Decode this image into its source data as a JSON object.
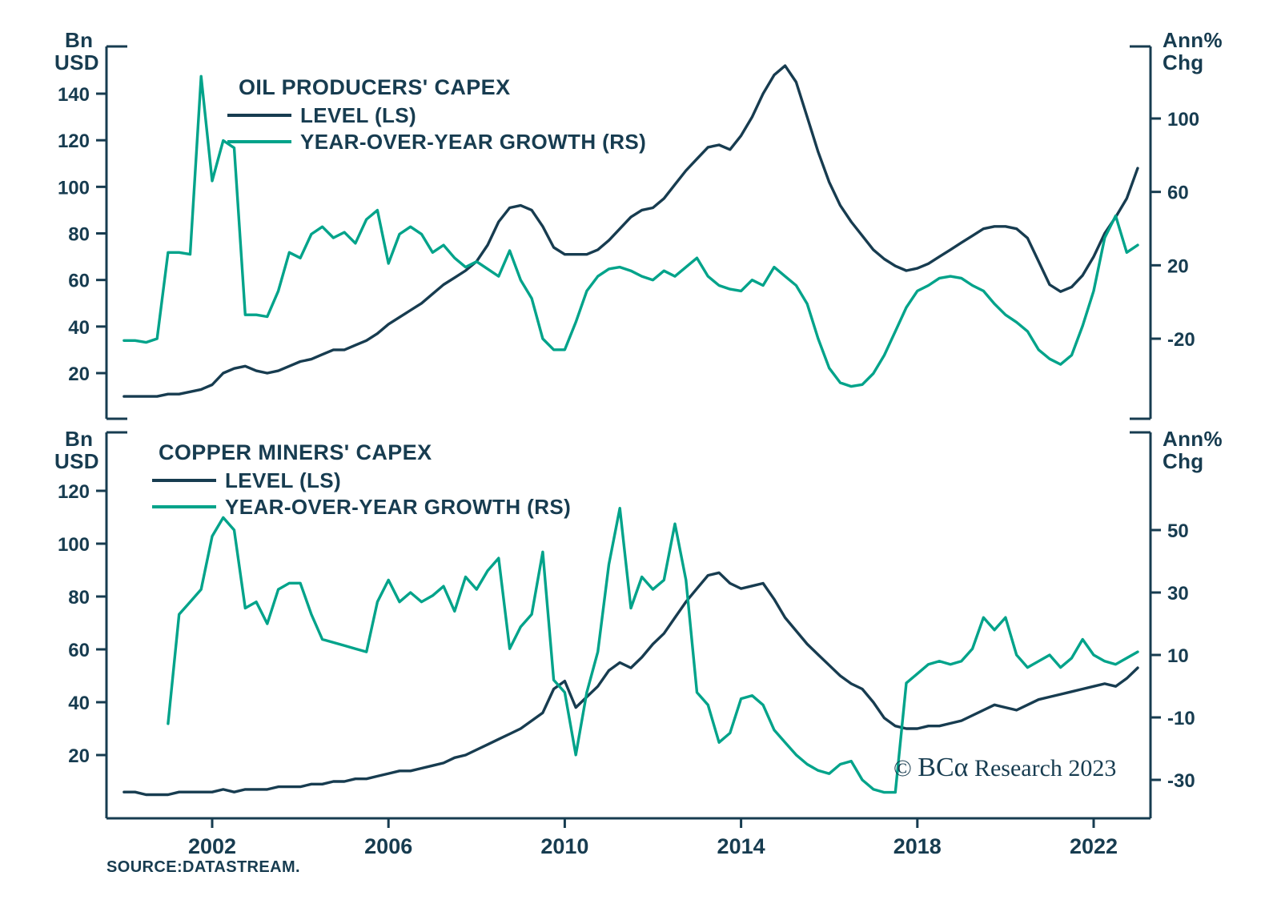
{
  "colors": {
    "navy": "#173c50",
    "teal": "#00a38a",
    "background": "#ffffff"
  },
  "top_chart": {
    "title": "OIL PRODUCERS' CAPEX",
    "legend_level": "LEVEL (LS)",
    "legend_growth": "YEAR-OVER-YEAR GROWTH (RS)",
    "left_unit_line1": "Bn",
    "left_unit_line2": "USD",
    "right_unit_line1": "Ann%",
    "right_unit_line2": "Chg"
  },
  "bottom_chart": {
    "title": "COPPER MINERS' CAPEX",
    "legend_level": "LEVEL (LS)",
    "legend_growth": "YEAR-OVER-YEAR GROWTH (RS)",
    "left_unit_line1": "Bn",
    "left_unit_line2": "USD",
    "right_unit_line1": "Ann%",
    "right_unit_line2": "Chg"
  },
  "footer": {
    "copyright_symbol": "©",
    "brand": "BCα",
    "copyright_suffix": "Research 2023",
    "source": "SOURCE:DATASTREAM."
  },
  "chart_data": [
    {
      "type": "line",
      "title": "OIL PRODUCERS' CAPEX",
      "x_start": 2000.0,
      "x_step": 0.25,
      "x_tick_labels": [
        2002,
        2006,
        2010,
        2014,
        2018,
        2022
      ],
      "left_axis": {
        "label": "Bn USD",
        "ticks": [
          20,
          40,
          60,
          80,
          100,
          120,
          140
        ],
        "approx_range": [
          0,
          160
        ]
      },
      "right_axis": {
        "label": "Ann% Chg",
        "ticks": [
          -20,
          20,
          60,
          100
        ],
        "approx_range": [
          -64,
          139
        ]
      },
      "series": [
        {
          "name": "LEVEL (LS)",
          "axis": "left",
          "color_key": "navy",
          "unit": "Bn USD",
          "values": [
            10,
            10,
            10,
            10,
            11,
            11,
            12,
            13,
            15,
            20,
            22,
            23,
            21,
            20,
            21,
            23,
            25,
            26,
            28,
            30,
            30,
            32,
            34,
            37,
            41,
            44,
            47,
            50,
            54,
            58,
            61,
            64,
            68,
            75,
            85,
            91,
            92,
            90,
            83,
            74,
            71,
            71,
            71,
            73,
            77,
            82,
            87,
            90,
            91,
            95,
            101,
            107,
            112,
            117,
            118,
            116,
            122,
            130,
            140,
            148,
            152,
            145,
            130,
            115,
            102,
            92,
            85,
            79,
            73,
            69,
            66,
            64,
            65,
            67,
            70,
            73,
            76,
            79,
            82,
            83,
            83,
            82,
            78,
            68,
            58,
            55,
            57,
            62,
            70,
            80,
            87,
            95,
            108
          ]
        },
        {
          "name": "YEAR-OVER-YEAR GROWTH (RS)",
          "axis": "right",
          "color_key": "teal",
          "unit": "Ann% Chg",
          "values": [
            -21,
            -21,
            -22,
            -20,
            27,
            27,
            26,
            123,
            66,
            88,
            84,
            -7,
            -7,
            -8,
            6,
            27,
            24,
            37,
            41,
            35,
            38,
            32,
            45,
            50,
            21,
            37,
            41,
            37,
            27,
            31,
            24,
            19,
            22,
            18,
            14,
            28,
            12,
            2,
            -20,
            -26,
            -26,
            -11,
            6,
            14,
            18,
            19,
            17,
            14,
            12,
            17,
            14,
            19,
            24,
            14,
            9,
            7,
            6,
            12,
            9,
            19,
            14,
            9,
            -1,
            -20,
            -36,
            -44,
            -46,
            -45,
            -39,
            -29,
            -16,
            -3,
            6,
            9,
            13,
            14,
            13,
            9,
            6,
            -1,
            -7,
            -11,
            -16,
            -26,
            -31,
            -34,
            -29,
            -13,
            6,
            35,
            47,
            27,
            31
          ]
        }
      ]
    },
    {
      "type": "line",
      "title": "COPPER MINERS' CAPEX",
      "x_start": 2000.0,
      "x_step": 0.25,
      "x_tick_labels": [
        2002,
        2006,
        2010,
        2014,
        2018,
        2022
      ],
      "left_axis": {
        "label": "Bn USD",
        "ticks": [
          20,
          40,
          60,
          80,
          100,
          120
        ],
        "approx_range": [
          0,
          142
        ]
      },
      "right_axis": {
        "label": "Ann% Chg",
        "ticks": [
          -30,
          -10,
          10,
          30,
          50
        ],
        "approx_range": [
          -42,
          82
        ]
      },
      "series": [
        {
          "name": "LEVEL (LS)",
          "axis": "left",
          "color_key": "navy",
          "unit": "Bn USD",
          "values": [
            6,
            6,
            5,
            5,
            5,
            6,
            6,
            6,
            6,
            7,
            6,
            7,
            7,
            7,
            8,
            8,
            8,
            9,
            9,
            10,
            10,
            11,
            11,
            12,
            13,
            14,
            14,
            15,
            16,
            17,
            19,
            20,
            22,
            24,
            26,
            28,
            30,
            33,
            36,
            45,
            48,
            38,
            42,
            46,
            52,
            55,
            53,
            57,
            62,
            66,
            72,
            78,
            83,
            88,
            89,
            85,
            83,
            84,
            85,
            79,
            72,
            67,
            62,
            58,
            54,
            50,
            47,
            45,
            40,
            34,
            31,
            30,
            30,
            31,
            31,
            32,
            33,
            35,
            37,
            39,
            38,
            37,
            39,
            41,
            42,
            43,
            44,
            45,
            46,
            47,
            46,
            49,
            53
          ]
        },
        {
          "name": "YEAR-OVER-YEAR GROWTH (RS)",
          "axis": "right",
          "color_key": "teal",
          "unit": "Ann% Chg",
          "values": [
            null,
            null,
            null,
            null,
            -12,
            23,
            27,
            31,
            48,
            54,
            50,
            25,
            27,
            20,
            31,
            33,
            33,
            23,
            15,
            14,
            13,
            12,
            11,
            27,
            34,
            27,
            30,
            27,
            29,
            32,
            24,
            35,
            31,
            37,
            41,
            12,
            19,
            23,
            43,
            2,
            -2,
            -22,
            -2,
            11,
            39,
            57,
            25,
            35,
            31,
            34,
            52,
            34,
            -2,
            -6,
            -18,
            -15,
            -4,
            -3,
            -6,
            -14,
            -18,
            -22,
            -25,
            -27,
            -28,
            -25,
            -24,
            -30,
            -33,
            -34,
            -34,
            1,
            4,
            7,
            8,
            7,
            8,
            12,
            22,
            18,
            22,
            10,
            6,
            8,
            10,
            6,
            9,
            15,
            10,
            8,
            7,
            9,
            11
          ]
        }
      ]
    }
  ]
}
